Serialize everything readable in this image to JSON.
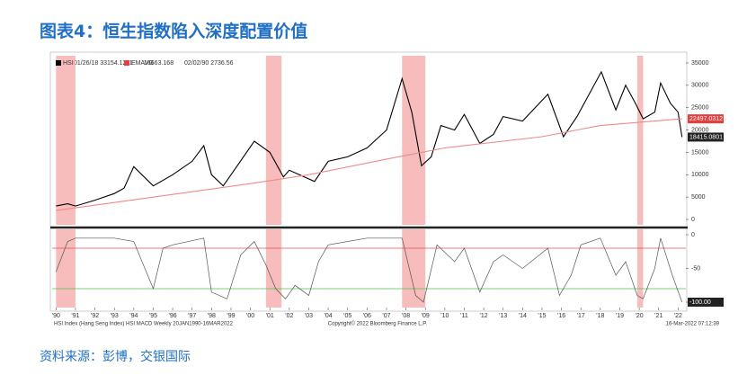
{
  "title": "图表4：恒生指数陷入深度配置价值",
  "source": "资料来源：彭博，交银国际",
  "footer": {
    "left": "HSI Index (Hang Seng Index) HSI MACD Weekly 20JAN1990-16MAR2022",
    "center": "Copyright© 2022 Bloomberg Finance L.P.",
    "right": "16-Mar-2022 07:12:39"
  },
  "chart_data": [
    {
      "type": "line",
      "header": [
        "01/26/18 33154.1211",
        "16663.168",
        "02/02/90 2736.56"
      ],
      "highlight_ranges": [
        [
          1990.0,
          1991.0
        ],
        [
          2000.8,
          2001.6
        ],
        [
          2007.8,
          2009.0
        ],
        [
          2019.9,
          2020.2
        ]
      ],
      "xlim": [
        1989.8,
        2022.4
      ],
      "ylim": [
        -1200,
        36600
      ],
      "yticks": [
        0,
        5000,
        10000,
        15000,
        20000,
        25000,
        30000,
        35000
      ],
      "series": [
        {
          "name": "HSI",
          "color": "#000000",
          "end_label": "18415.0801",
          "x": [
            1990.0,
            1990.6,
            1991.0,
            1992.0,
            1993.0,
            1993.5,
            1994.0,
            1995.0,
            1996.0,
            1997.0,
            1997.6,
            1998.0,
            1998.6,
            1999.0,
            2000.2,
            2001.0,
            2001.7,
            2002.0,
            2003.3,
            2004.0,
            2005.0,
            2006.0,
            2007.0,
            2007.8,
            2008.3,
            2008.8,
            2009.3,
            2009.8,
            2010.5,
            2011.0,
            2011.8,
            2012.5,
            2013.0,
            2014.0,
            2015.3,
            2016.1,
            2016.8,
            2018.05,
            2018.8,
            2019.3,
            2019.8,
            2020.2,
            2020.8,
            2021.1,
            2021.6,
            2022.0,
            2022.2
          ],
          "values": [
            3000,
            3500,
            3000,
            4300,
            5800,
            7000,
            11800,
            7500,
            10000,
            13000,
            16500,
            10000,
            7500,
            10000,
            17500,
            15000,
            9500,
            11000,
            8500,
            13000,
            14000,
            16000,
            20000,
            31500,
            24000,
            12000,
            14000,
            21000,
            20000,
            23500,
            17000,
            19000,
            23000,
            22000,
            28000,
            18500,
            23000,
            33000,
            24500,
            30000,
            26000,
            22500,
            24000,
            30500,
            26000,
            24000,
            18415.0801
          ]
        },
        {
          "name": "EMAVG",
          "color": "#f08a8a",
          "end_label": "22497.0312",
          "x": [
            1990.0,
            1995.0,
            2000.0,
            2003.0,
            2007.0,
            2010.0,
            2015.0,
            2018.0,
            2022.2
          ],
          "values": [
            2000,
            5000,
            8000,
            10000,
            13500,
            16000,
            18500,
            21000,
            22497.0312
          ]
        }
      ]
    },
    {
      "type": "line",
      "xlim": [
        1989.8,
        2022.4
      ],
      "ylim": [
        -108,
        8
      ],
      "yticks": [
        0,
        -50,
        -100
      ],
      "reference_lines": [
        {
          "value": -20,
          "color": "#e05050"
        },
        {
          "value": -80,
          "color": "#55bb55"
        }
      ],
      "xticks": [
        {
          "value": 1990,
          "label": "'90"
        },
        {
          "value": 1991,
          "label": "'91"
        },
        {
          "value": 1992,
          "label": "'92"
        },
        {
          "value": 1993,
          "label": "'93"
        },
        {
          "value": 1994,
          "label": "'94"
        },
        {
          "value": 1995,
          "label": "'95"
        },
        {
          "value": 1996,
          "label": "'96"
        },
        {
          "value": 1997,
          "label": "'97"
        },
        {
          "value": 1998,
          "label": "'98"
        },
        {
          "value": 1999,
          "label": "'99"
        },
        {
          "value": 2000,
          "label": "'00"
        },
        {
          "value": 2001,
          "label": "'01"
        },
        {
          "value": 2002,
          "label": "'02"
        },
        {
          "value": 2003,
          "label": "'03"
        },
        {
          "value": 2004,
          "label": "'04"
        },
        {
          "value": 2005,
          "label": "'05"
        },
        {
          "value": 2006,
          "label": "'06"
        },
        {
          "value": 2007,
          "label": "'07"
        },
        {
          "value": 2008,
          "label": "'08"
        },
        {
          "value": 2009,
          "label": "'09"
        },
        {
          "value": 2010,
          "label": "'10"
        },
        {
          "value": 2011,
          "label": "'11"
        },
        {
          "value": 2012,
          "label": "'12"
        },
        {
          "value": 2013,
          "label": "'13"
        },
        {
          "value": 2014,
          "label": "'14"
        },
        {
          "value": 2015,
          "label": "'15"
        },
        {
          "value": 2016,
          "label": "'16"
        },
        {
          "value": 2017,
          "label": "'17"
        },
        {
          "value": 2018,
          "label": "'18"
        },
        {
          "value": 2019,
          "label": "'19"
        },
        {
          "value": 2020,
          "label": "'20"
        },
        {
          "value": 2021,
          "label": "'21"
        },
        {
          "value": 2022,
          "label": "'22"
        }
      ],
      "series": [
        {
          "name": "HSI MACD",
          "color": "#555555",
          "end_label": "-100.00",
          "x": [
            1990.0,
            1990.6,
            1991.0,
            1993.0,
            1994.0,
            1994.5,
            1995.0,
            1995.5,
            1996.0,
            1997.6,
            1998.0,
            1998.8,
            1999.5,
            2000.2,
            2000.8,
            2001.3,
            2001.8,
            2002.3,
            2003.0,
            2003.5,
            2004.0,
            2006.0,
            2007.8,
            2008.5,
            2008.9,
            2009.6,
            2010.5,
            2011.0,
            2011.8,
            2012.5,
            2013.0,
            2014.0,
            2015.3,
            2015.9,
            2016.5,
            2017.0,
            2018.0,
            2018.8,
            2019.3,
            2019.9,
            2020.2,
            2020.8,
            2021.1,
            2021.7,
            2022.2
          ],
          "values": [
            -55,
            -10,
            -5,
            -5,
            -10,
            -45,
            -80,
            -20,
            -15,
            -5,
            -85,
            -95,
            -30,
            -10,
            -45,
            -80,
            -95,
            -75,
            -90,
            -40,
            -15,
            -5,
            -5,
            -90,
            -100,
            -15,
            -40,
            -20,
            -85,
            -40,
            -30,
            -50,
            -20,
            -90,
            -60,
            -15,
            -5,
            -60,
            -40,
            -90,
            -95,
            -50,
            -5,
            -60,
            -100
          ]
        }
      ]
    }
  ]
}
